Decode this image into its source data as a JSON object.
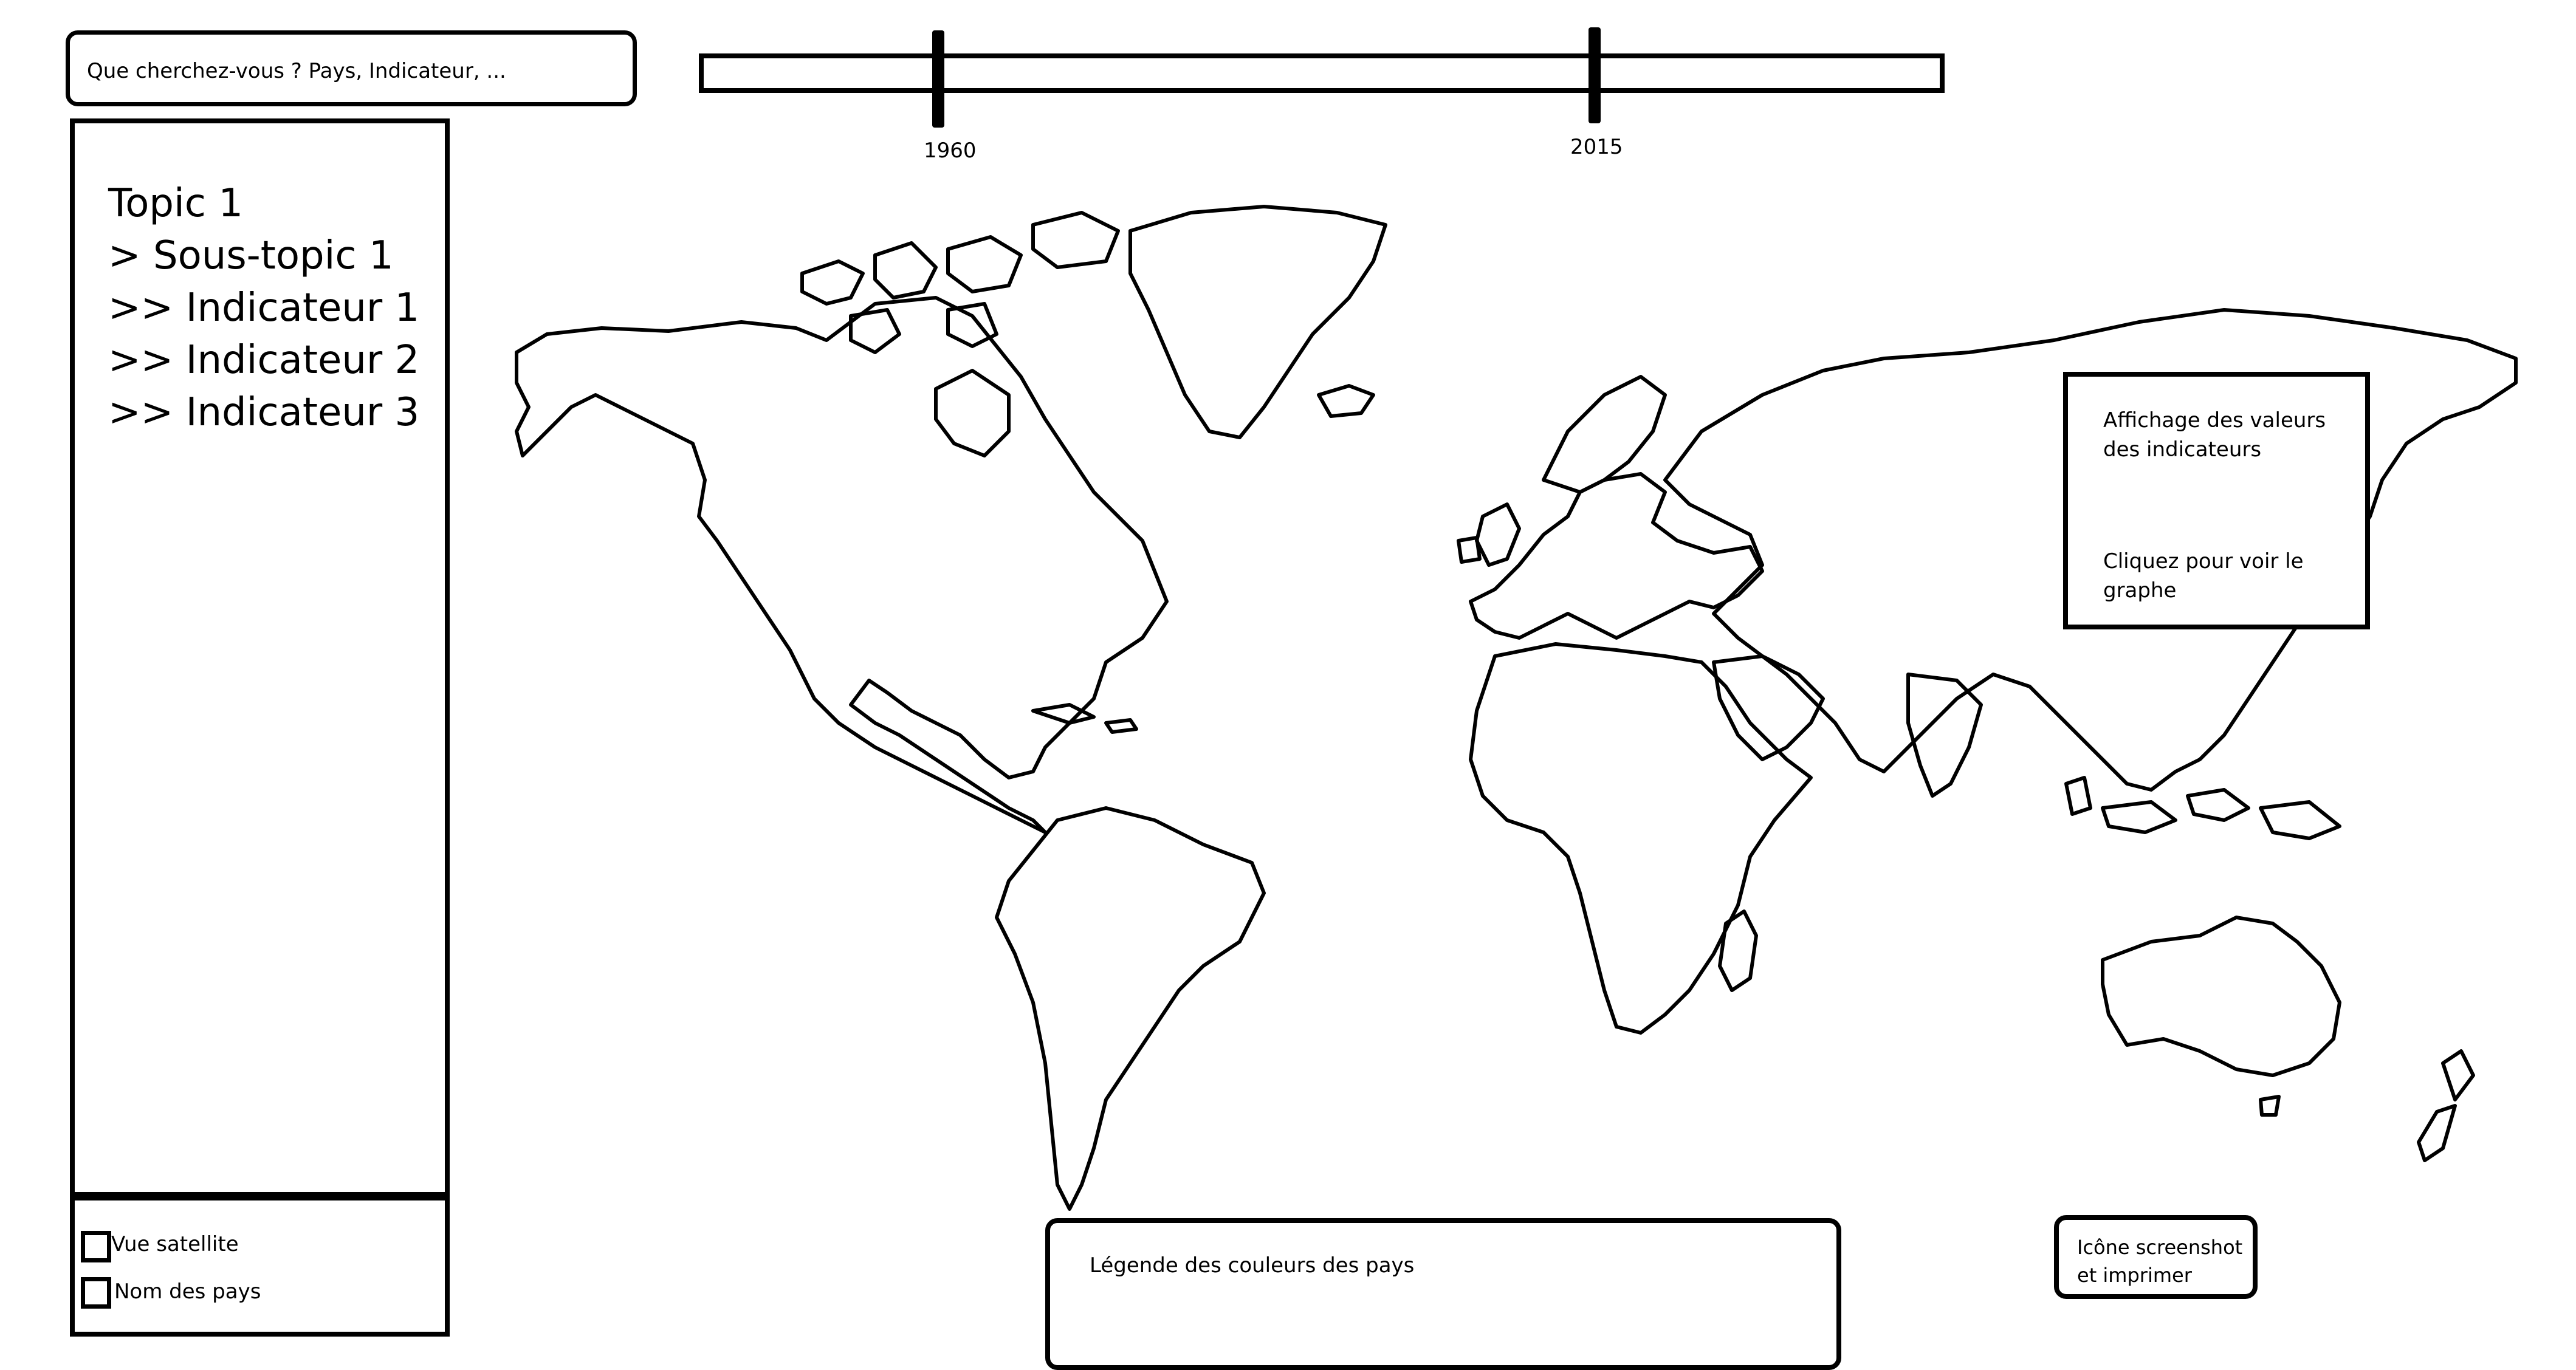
{
  "search": {
    "placeholder": "Que cherchez-vous ? Pays, Indicateur, ..."
  },
  "timeline": {
    "start_year": "1960",
    "end_year": "2015"
  },
  "sidebar": {
    "items": [
      {
        "label": "Topic 1"
      },
      {
        "label": "> Sous-topic 1"
      },
      {
        "label": ">> Indicateur 1"
      },
      {
        "label": ">> Indicateur 2"
      },
      {
        "label": ">> Indicateur 3"
      }
    ]
  },
  "options": {
    "satellite_label": "Vue satellite",
    "country_names_label": "Nom des pays"
  },
  "info_panel": {
    "values_text": "Affichage des valeurs des indicateurs",
    "click_text": "Cliquez pour voir le graphe"
  },
  "legend": {
    "title": "Légende des couleurs des pays"
  },
  "screenshot_button": {
    "label": "Icône screenshot et imprimer"
  },
  "icons": {
    "checkbox": "checkbox-icon",
    "map": "world-map"
  }
}
